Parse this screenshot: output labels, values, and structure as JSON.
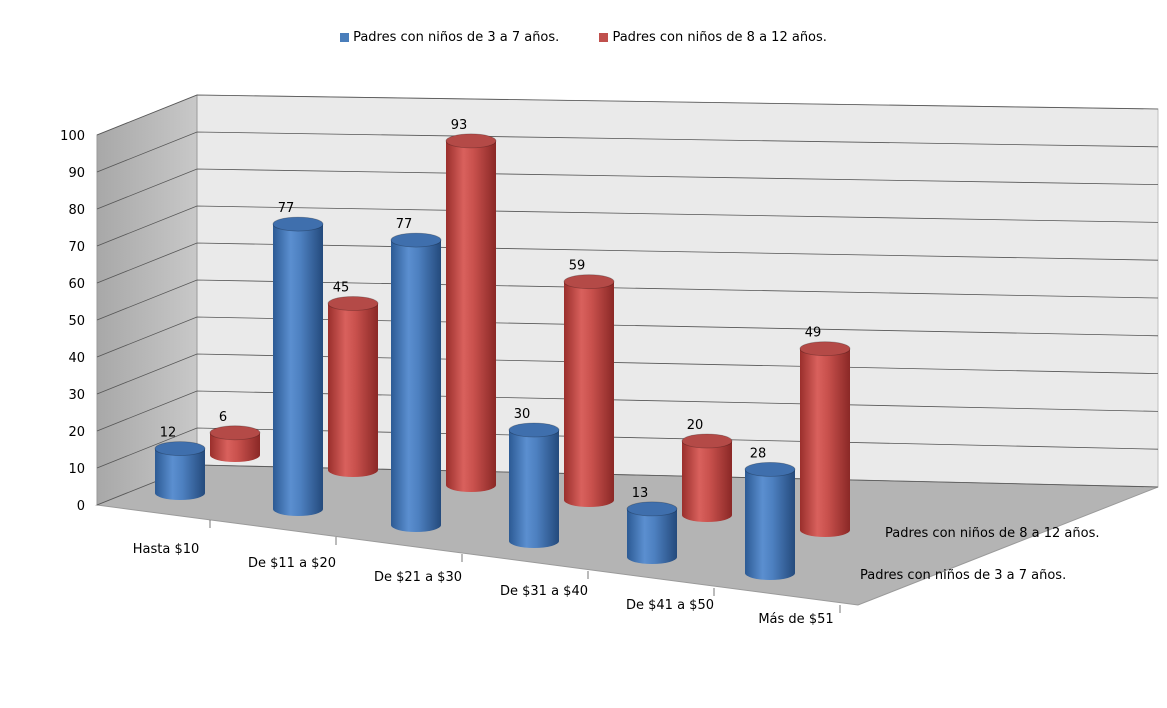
{
  "chart_data": {
    "type": "bar",
    "subtype": "3d-cylinder",
    "title": "",
    "categories": [
      "Hasta $10",
      "De $11 a $20",
      "De $21 a $30",
      "De $31 a $40",
      "De $41 a $50",
      "Más de $51"
    ],
    "series": [
      {
        "name": "Padres con niños de 3 a 7 años.",
        "values": [
          12,
          77,
          77,
          30,
          13,
          28
        ],
        "color": "#4a7ebb"
      },
      {
        "name": "Padres con niños de 8 a 12 años.",
        "values": [
          6,
          45,
          93,
          59,
          20,
          49
        ],
        "color": "#c0504d"
      }
    ],
    "ylim": [
      0,
      100
    ],
    "yticks": [
      "0",
      "10",
      "20",
      "30",
      "40",
      "50",
      "60",
      "70",
      "80",
      "90",
      "100"
    ],
    "grid": true,
    "legend_position": "top",
    "depth_axis_labels": [
      "Padres con niños de 8 a 12 años.",
      "Padres con niños de 3 a 7 años."
    ]
  }
}
